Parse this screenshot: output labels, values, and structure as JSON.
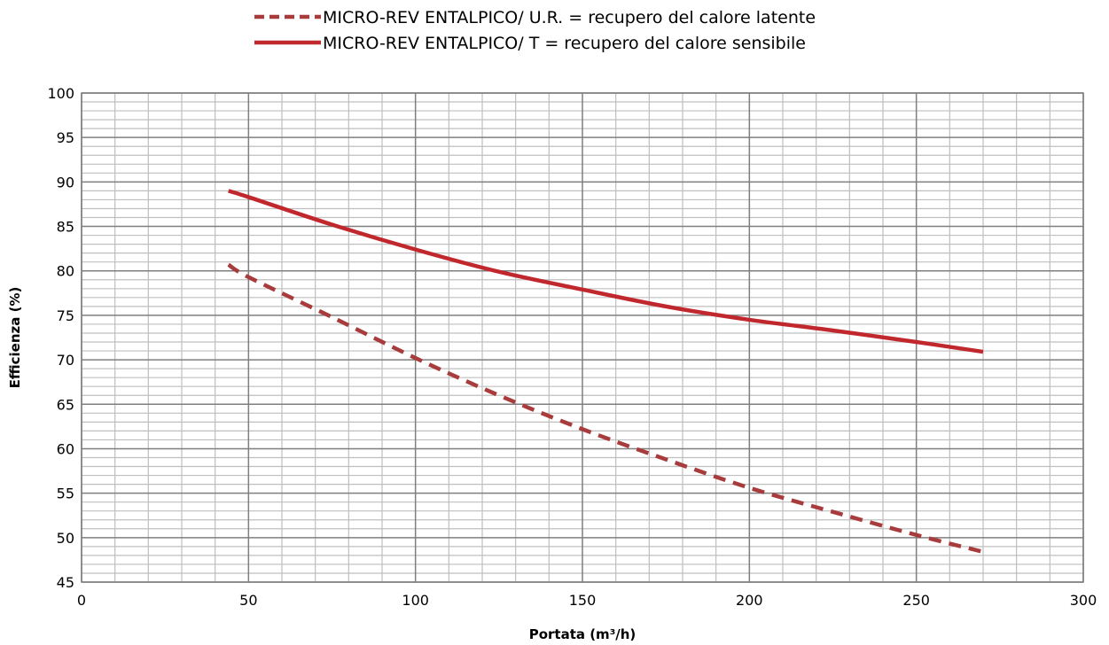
{
  "chart_data": {
    "type": "line",
    "title": "",
    "xlabel": "Portata (m³/h)",
    "ylabel": "Efficienza (%)",
    "xlim": [
      0,
      300
    ],
    "ylim": [
      45,
      100
    ],
    "x_ticks": [
      "0",
      "50",
      "100",
      "150",
      "200",
      "250",
      "300"
    ],
    "y_ticks": [
      "45",
      "50",
      "55",
      "60",
      "65",
      "70",
      "75",
      "80",
      "85",
      "90",
      "95",
      "100"
    ],
    "x_major_step": 50,
    "x_minor_step": 10,
    "y_major_step": 5,
    "y_minor_step": 1,
    "grid": true,
    "legend_position": "top-center",
    "series": [
      {
        "name": "MICRO-REV ENTALPICO/ U.R. = recupero del calore latente",
        "style": "dashed",
        "color": "#A83C3C",
        "x": [
          44,
          50,
          75,
          100,
          125,
          150,
          175,
          200,
          225,
          250,
          270
        ],
        "y": [
          80.7,
          79.3,
          74.8,
          70.2,
          66.0,
          62.2,
          58.8,
          55.6,
          52.9,
          50.3,
          48.4
        ]
      },
      {
        "name": "MICRO-REV ENTALPICO/ T = recupero del calore sensibile",
        "style": "solid",
        "color": "#C0282D",
        "x": [
          44,
          50,
          75,
          100,
          125,
          150,
          175,
          200,
          225,
          250,
          270
        ],
        "y": [
          89.0,
          88.3,
          85.2,
          82.4,
          79.9,
          77.9,
          76.0,
          74.5,
          73.3,
          72.0,
          70.9
        ]
      }
    ]
  }
}
